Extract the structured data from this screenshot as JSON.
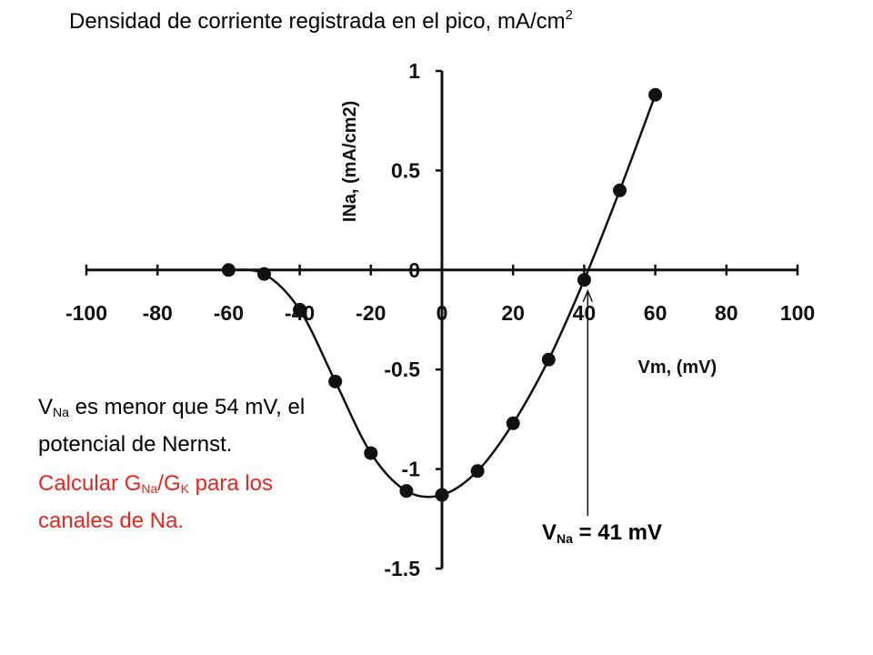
{
  "slide": {
    "title": "Densidad de corriente registrada en el pico, mA/cm",
    "title_sup": "2"
  },
  "chart_data": {
    "type": "scatter",
    "subtype": "line-with-markers",
    "xlabel": "Vm, (mV)",
    "ylabel": "INa, (mA/cm2)",
    "xlim": [
      -100,
      100
    ],
    "ylim": [
      -1.5,
      1
    ],
    "xticks": [
      -100,
      -80,
      -60,
      -40,
      -20,
      0,
      20,
      40,
      60,
      80,
      100
    ],
    "yticks": [
      1,
      0.5,
      0,
      -0.5,
      -1,
      -1.5
    ],
    "grid": false,
    "legend": "none",
    "series": [
      {
        "x": [
          -60,
          -50,
          -40,
          -30,
          -20,
          -10,
          0,
          10,
          20,
          30,
          40,
          50,
          60
        ],
        "y": [
          0,
          -0.02,
          -0.2,
          -0.56,
          -0.92,
          -1.11,
          -1.13,
          -1.01,
          -0.77,
          -0.45,
          -0.05,
          0.4,
          0.88
        ]
      }
    ],
    "annotation": {
      "x": 41,
      "text_main": "V",
      "text_sub": "Na",
      "text_rest": " = 41 mV"
    }
  },
  "notes": {
    "p1_v": "V",
    "p1_sub": "Na",
    "p1_rest": " es menor que 54 mV, el potencial de Nernst.",
    "p2_a": "Calcular G",
    "p2_sub1": "Na",
    "p2_b": "/G",
    "p2_sub2": "K",
    "p2_c": " para los canales de Na."
  },
  "colors": {
    "text": "#000000",
    "highlight": "#e8251e",
    "axis": "#111111"
  }
}
